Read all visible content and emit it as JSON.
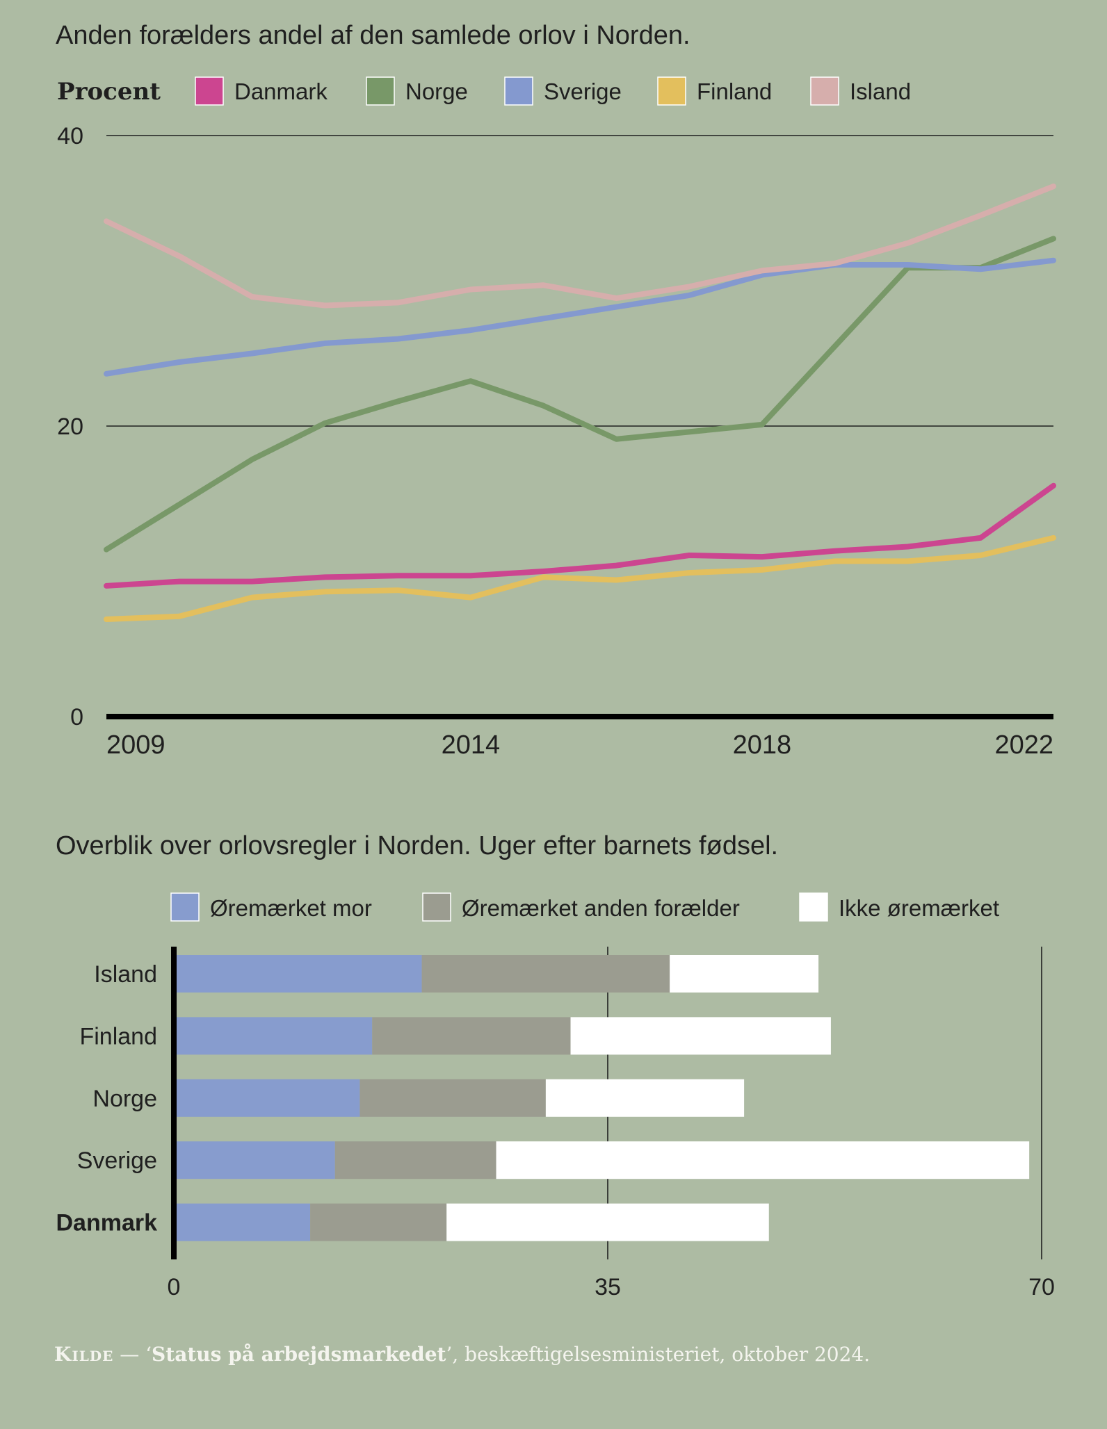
{
  "line_chart_title": "Anden forælders andel af den samlede orlov i Norden.",
  "bar_chart_title": "Overblik over orlovsregler i Norden. Uger efter barnets fødsel.",
  "source": {
    "kilde": "Kilde",
    "dash": " — ‘",
    "report": "Status på arbejdsmarkedet",
    "rest": "’, beskæftigelsesministeriet, oktober 2024."
  },
  "colors": {
    "background": "#adbba3",
    "Danmark": "#cc4590",
    "Norge": "#789868",
    "Sverige": "#8499cf",
    "Finland": "#e3bf5d",
    "Island": "#d6aeac",
    "oremaerket_mor": "#879cce",
    "oremaerket_anden": "#9b9c90",
    "ikke_oremaerket": "#ffffff"
  },
  "chart_data": [
    {
      "type": "line",
      "title": "Anden forælders andel af den samlede orlov i Norden.",
      "ylabel": "Procent",
      "xlabel": "",
      "ylim": [
        0,
        40
      ],
      "yticks": [
        0,
        20,
        40
      ],
      "xlim": [
        2009,
        2022
      ],
      "xticks": [
        2009,
        2014,
        2018,
        2022
      ],
      "x": [
        2009,
        2010,
        2011,
        2012,
        2013,
        2014,
        2015,
        2016,
        2017,
        2018,
        2019,
        2020,
        2021,
        2022
      ],
      "legend": "top",
      "grid": true,
      "series": [
        {
          "name": "Danmark",
          "color": "#cc4590",
          "values": [
            9.0,
            9.3,
            9.3,
            9.6,
            9.7,
            9.7,
            10.0,
            10.4,
            11.1,
            11.0,
            11.4,
            11.7,
            12.3,
            15.9
          ]
        },
        {
          "name": "Norge",
          "color": "#789868",
          "values": [
            11.5,
            14.6,
            17.7,
            20.2,
            21.7,
            23.1,
            21.4,
            19.1,
            19.6,
            20.1,
            25.5,
            30.9,
            30.9,
            32.9
          ]
        },
        {
          "name": "Sverige",
          "color": "#8499cf",
          "values": [
            23.6,
            24.4,
            25.0,
            25.7,
            26.0,
            26.6,
            27.4,
            28.2,
            29.0,
            30.4,
            31.1,
            31.1,
            30.8,
            31.4
          ]
        },
        {
          "name": "Finland",
          "color": "#e3bf5d",
          "values": [
            6.7,
            6.9,
            8.2,
            8.6,
            8.7,
            8.2,
            9.6,
            9.4,
            9.9,
            10.1,
            10.7,
            10.7,
            11.1,
            12.3
          ]
        },
        {
          "name": "Island",
          "color": "#d6aeac",
          "values": [
            34.1,
            31.7,
            28.9,
            28.3,
            28.5,
            29.4,
            29.7,
            28.8,
            29.6,
            30.7,
            31.2,
            32.6,
            34.5,
            36.5
          ]
        }
      ]
    },
    {
      "type": "bar",
      "orientation": "horizontal",
      "stacked": true,
      "title": "Overblik over orlovsregler i Norden. Uger efter barnets fødsel.",
      "xlim": [
        0,
        70
      ],
      "xticks": [
        0,
        35,
        70
      ],
      "legend": "top",
      "categories": [
        "Island",
        "Finland",
        "Norge",
        "Sverige",
        "Danmark"
      ],
      "highlight_category": "Danmark",
      "series": [
        {
          "name": "Øremærket mor",
          "color": "#879cce",
          "values": [
            20,
            16,
            15,
            13,
            11
          ]
        },
        {
          "name": "Øremærket anden forælder",
          "color": "#9b9c90",
          "values": [
            20,
            16,
            15,
            13,
            11
          ]
        },
        {
          "name": "Ikke øremærket",
          "color": "#ffffff",
          "values": [
            12,
            21,
            16,
            43,
            26
          ]
        }
      ]
    }
  ]
}
